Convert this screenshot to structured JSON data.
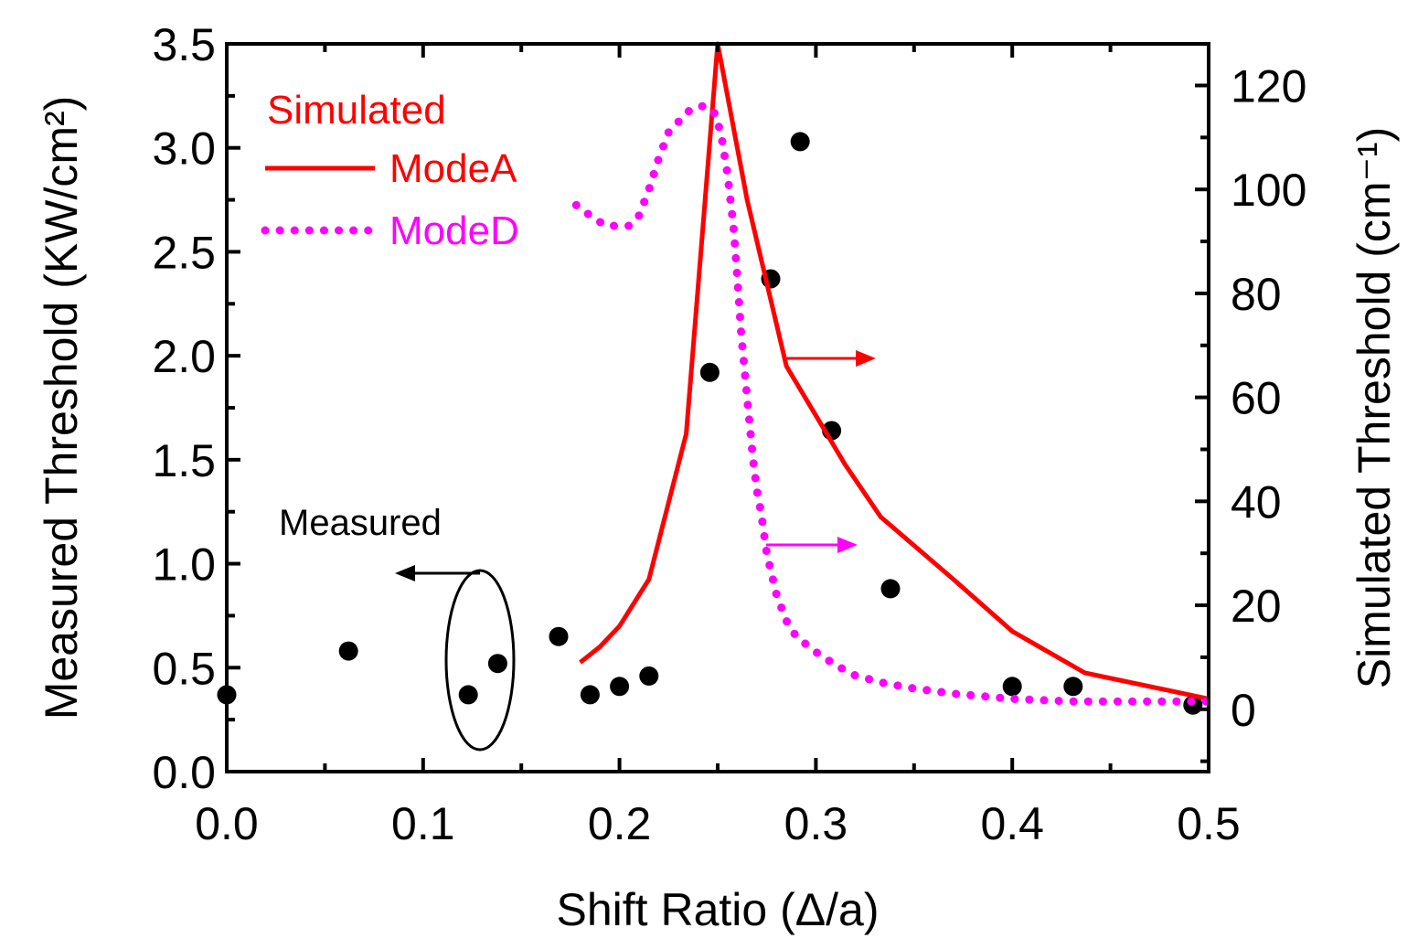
{
  "chart_data": {
    "type": "scatter+line",
    "title": "",
    "xlabel": "Shift Ratio (Δ/a)",
    "ylabel_left": "Measured Threshold (KW/cm²)",
    "ylabel_right": "Simulated Threshold (cm⁻¹)",
    "xlim": [
      0.0,
      0.5
    ],
    "ylim_left": [
      0.0,
      3.5
    ],
    "ylim_right": [
      -12,
      128
    ],
    "x_ticks": [
      "0.0",
      "0.1",
      "0.2",
      "0.3",
      "0.4",
      "0.5"
    ],
    "y_left_ticks": [
      "0.0",
      "0.5",
      "1.0",
      "1.5",
      "2.0",
      "2.5",
      "3.0",
      "3.5"
    ],
    "y_right_ticks": [
      "0",
      "20",
      "40",
      "60",
      "80",
      "100",
      "120"
    ],
    "series": [
      {
        "name": "Measured",
        "axis": "left",
        "style": "scatter",
        "color": "#000000",
        "x": [
          0.0,
          0.062,
          0.123,
          0.138,
          0.169,
          0.185,
          0.2,
          0.215,
          0.246,
          0.277,
          0.292,
          0.308,
          0.338,
          0.4,
          0.431,
          0.492
        ],
        "y": [
          0.37,
          0.58,
          0.37,
          0.52,
          0.65,
          0.37,
          0.41,
          0.46,
          1.92,
          2.37,
          3.03,
          1.64,
          0.88,
          0.41,
          0.41,
          0.32
        ]
      },
      {
        "name": "ModeA",
        "axis": "right",
        "style": "solid",
        "color": "#ff0000",
        "x": [
          0.18,
          0.19,
          0.2,
          0.215,
          0.234,
          0.25,
          0.265,
          0.285,
          0.315,
          0.333,
          0.37,
          0.4,
          0.437,
          0.5
        ],
        "y": [
          9,
          12,
          16,
          25,
          53,
          128,
          98,
          66,
          47,
          37,
          25,
          15,
          7,
          2
        ]
      },
      {
        "name": "ModeD",
        "axis": "right",
        "style": "dotted",
        "color": "#ff00ff",
        "x": [
          0.178,
          0.185,
          0.193,
          0.2,
          0.205,
          0.21,
          0.215,
          0.22,
          0.225,
          0.23,
          0.235,
          0.24,
          0.244,
          0.248,
          0.25,
          0.252,
          0.255,
          0.258,
          0.26,
          0.262,
          0.265,
          0.268,
          0.27,
          0.272,
          0.275,
          0.28,
          0.285,
          0.29,
          0.3,
          0.31,
          0.32,
          0.335,
          0.35,
          0.37,
          0.4,
          0.43,
          0.46,
          0.5
        ],
        "y": [
          97,
          95,
          93,
          93,
          93,
          95,
          100,
          106,
          111,
          113,
          115,
          116,
          116,
          115,
          113,
          110,
          103,
          93,
          83,
          72,
          60,
          48,
          42,
          38,
          30,
          22,
          17,
          14,
          11,
          8.5,
          6.5,
          5,
          4,
          3,
          2,
          1.5,
          1.5,
          1.5
        ]
      }
    ],
    "legend": {
      "title": "Simulated",
      "entries": [
        "ModeA",
        "ModeD"
      ],
      "placement": "top-left"
    },
    "annotations": {
      "measured_label": "Measured"
    },
    "colors": {
      "axis": "#000000",
      "modeA": "#ff0000",
      "modeD": "#ff00ff",
      "measured": "#000000"
    }
  }
}
